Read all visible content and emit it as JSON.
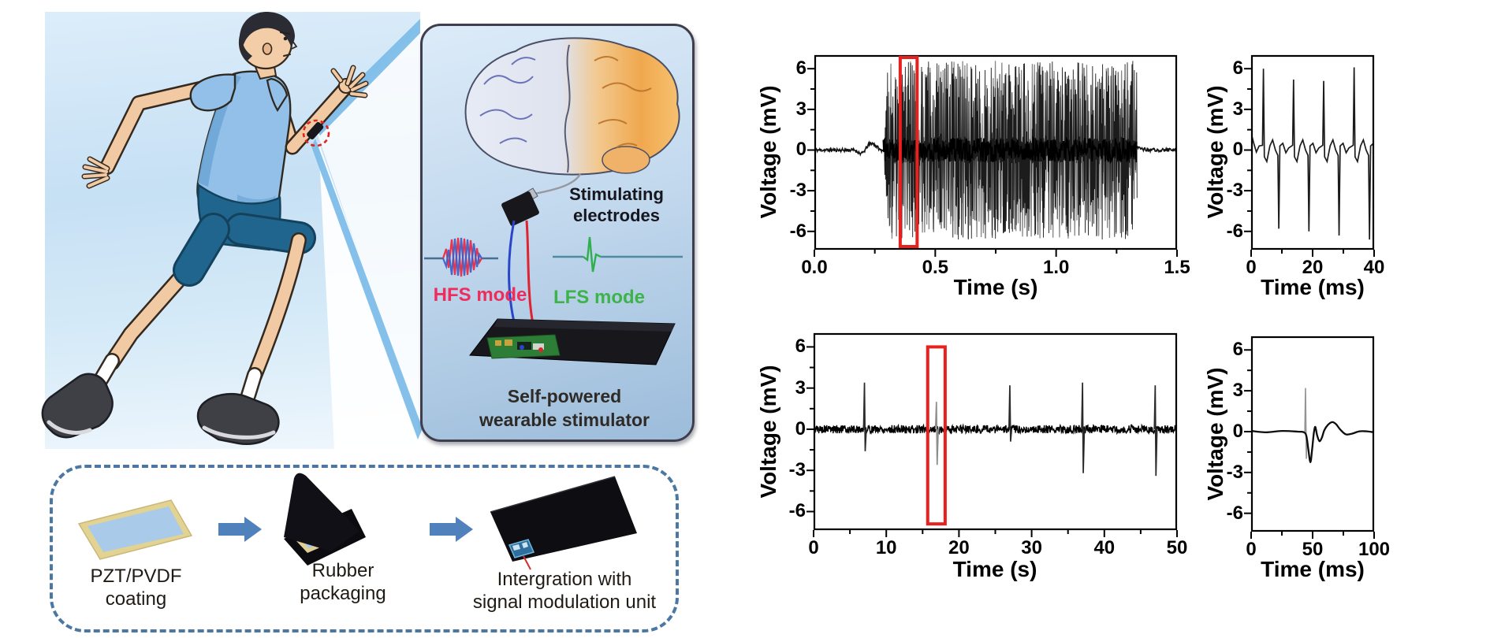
{
  "illustration": {
    "electrodes_label": {
      "line1": "Stimulating",
      "line2": "electrodes"
    },
    "hfs_label": "HFS mode",
    "lfs_label": "LFS mode",
    "stimulator_label": {
      "line1": "Self-powered",
      "line2": "wearable stimulator"
    },
    "colors": {
      "hfs_text": "#ee2d5d",
      "lfs_text": "#3cb44a",
      "hfs_wave_red": "#e8344e",
      "hfs_wave_blue": "#3b5bc4",
      "lfs_wave": "#4e8aa0",
      "lfs_spike": "#2fae4e",
      "wire_red": "#e02330",
      "wire_blue": "#2a46c8",
      "highlight_circle": "#e02424"
    }
  },
  "fabrication": {
    "steps": [
      {
        "line1": "PZT/PVDF",
        "line2": "coating"
      },
      {
        "line1": "Rubber",
        "line2": "packaging"
      },
      {
        "line1": "Intergration with",
        "line2": "signal modulation unit"
      }
    ],
    "border_color": "#4b78a3",
    "arrow_color": "#4f81bd"
  },
  "chart_data": [
    {
      "id": "hfs-output-long",
      "type": "line",
      "title": "HFS mode output, full record",
      "xlabel": "Time (s)",
      "ylabel": "Voltage (mV)",
      "xlim": [
        0,
        1.5
      ],
      "ylim": [
        -7.35,
        7.0
      ],
      "xticks": [
        "0.0",
        "0.5",
        "1.0",
        "1.5"
      ],
      "xtick_vals": [
        0,
        0.5,
        1.0,
        1.5
      ],
      "yticks": [
        6,
        3,
        0,
        -3,
        -6
      ],
      "x_minor_step": 0.25,
      "y_minor_step": 1.5,
      "signal": {
        "kind": "dense_burst",
        "quiet_noise_mV": 0.12,
        "pre_wobble": {
          "t0": 0.17,
          "t1": 0.27,
          "amp_mV": 0.5
        },
        "burst": {
          "t0": 0.285,
          "t1": 1.335,
          "peak_mV": 6.6,
          "core_mV": 0.9
        }
      },
      "highlight_box": {
        "x0": 0.355,
        "x1": 0.425,
        "full_height": true,
        "color": "#e8201e"
      }
    },
    {
      "id": "hfs-output-zoom",
      "type": "line",
      "title": "HFS mode output, zoom of boxed region",
      "xlabel": "Time (ms)",
      "ylabel": "Voltage (mV)",
      "xlim": [
        0,
        40
      ],
      "ylim": [
        -7.35,
        7.0
      ],
      "xticks": [
        "0",
        "20",
        "40"
      ],
      "xtick_vals": [
        0,
        20,
        40
      ],
      "yticks": [
        6,
        3,
        0,
        -3,
        -6
      ],
      "x_minor_step": 10,
      "y_minor_step": 1.5,
      "signal": {
        "kind": "spike_train",
        "start_mV": 1.25,
        "spikes": [
          {
            "t_up": 4.0,
            "up_mV": 6.0,
            "t_dn": 9.0,
            "dn_mV": -5.8
          },
          {
            "t_up": 13.8,
            "up_mV": 5.2,
            "t_dn": 18.8,
            "dn_mV": -6.0
          },
          {
            "t_up": 23.6,
            "up_mV": 5.1,
            "t_dn": 28.6,
            "dn_mV": -6.3
          },
          {
            "t_up": 33.5,
            "up_mV": 6.1,
            "t_dn": 38.5,
            "dn_mV": -6.6
          }
        ]
      }
    },
    {
      "id": "lfs-output-long",
      "type": "line",
      "title": "LFS mode output, full record",
      "xlabel": "Time (s)",
      "ylabel": "Voltage (mV)",
      "xlim": [
        0,
        50
      ],
      "ylim": [
        -7.35,
        7.0
      ],
      "xticks": [
        "0",
        "10",
        "20",
        "30",
        "40",
        "50"
      ],
      "xtick_vals": [
        0,
        10,
        20,
        30,
        40,
        50
      ],
      "yticks": [
        6,
        3,
        0,
        -3,
        -6
      ],
      "x_minor_step": 5,
      "y_minor_step": 1.5,
      "signal": {
        "kind": "noise_spikes",
        "noise_mV": 0.3,
        "spikes": [
          {
            "t": 7.0,
            "up_mV": 3.4,
            "dn_mV": -1.6,
            "gray": false
          },
          {
            "t": 16.9,
            "up_mV": 2.0,
            "dn_mV": -2.6,
            "gray": true
          },
          {
            "t": 27.0,
            "up_mV": 3.2,
            "dn_mV": -0.9,
            "gray": false
          },
          {
            "t": 37.0,
            "up_mV": 3.4,
            "dn_mV": -3.2,
            "gray": false
          },
          {
            "t": 47.0,
            "up_mV": 3.2,
            "dn_mV": -3.4,
            "gray": false
          }
        ]
      },
      "highlight_box": {
        "x0": 15.7,
        "x1": 18.1,
        "y0": -6.9,
        "y1": 6.0,
        "color": "#e8201e"
      }
    },
    {
      "id": "lfs-output-zoom",
      "type": "line",
      "title": "LFS mode output, zoom of boxed region",
      "xlabel": "Time (ms)",
      "ylabel": "Voltage (mV)",
      "xlim": [
        0,
        100
      ],
      "ylim": [
        -7.35,
        7.0
      ],
      "xticks": [
        "0",
        "50",
        "100"
      ],
      "xtick_vals": [
        0,
        50,
        100
      ],
      "yticks": [
        6,
        3,
        0,
        -3,
        -6
      ],
      "x_minor_step": 25,
      "y_minor_step": 1.5,
      "signal": {
        "kind": "pulse",
        "gray_spike": [
          [
            43.7,
            0
          ],
          [
            44.2,
            3.2
          ],
          [
            44.9,
            -2.0
          ],
          [
            45.2,
            -0.4
          ]
        ],
        "wave": [
          [
            0,
            0.05
          ],
          [
            12,
            -0.05
          ],
          [
            25,
            0.05
          ],
          [
            38,
            0
          ],
          [
            43,
            -0.05
          ],
          [
            45,
            -0.35
          ],
          [
            46.5,
            -1.3
          ],
          [
            48.2,
            -2.25
          ],
          [
            49.6,
            -1.3
          ],
          [
            51,
            -0.1
          ],
          [
            52.2,
            0.35
          ],
          [
            53.6,
            -0.25
          ],
          [
            55.5,
            -0.7
          ],
          [
            57.5,
            -0.45
          ],
          [
            59.5,
            0.1
          ],
          [
            62.5,
            0.5
          ],
          [
            66,
            0.7
          ],
          [
            69,
            0.55
          ],
          [
            72.5,
            0.15
          ],
          [
            77,
            -0.2
          ],
          [
            82,
            -0.15
          ],
          [
            88,
            0.02
          ],
          [
            94,
            0.02
          ],
          [
            100,
            -0.05
          ]
        ]
      }
    }
  ]
}
